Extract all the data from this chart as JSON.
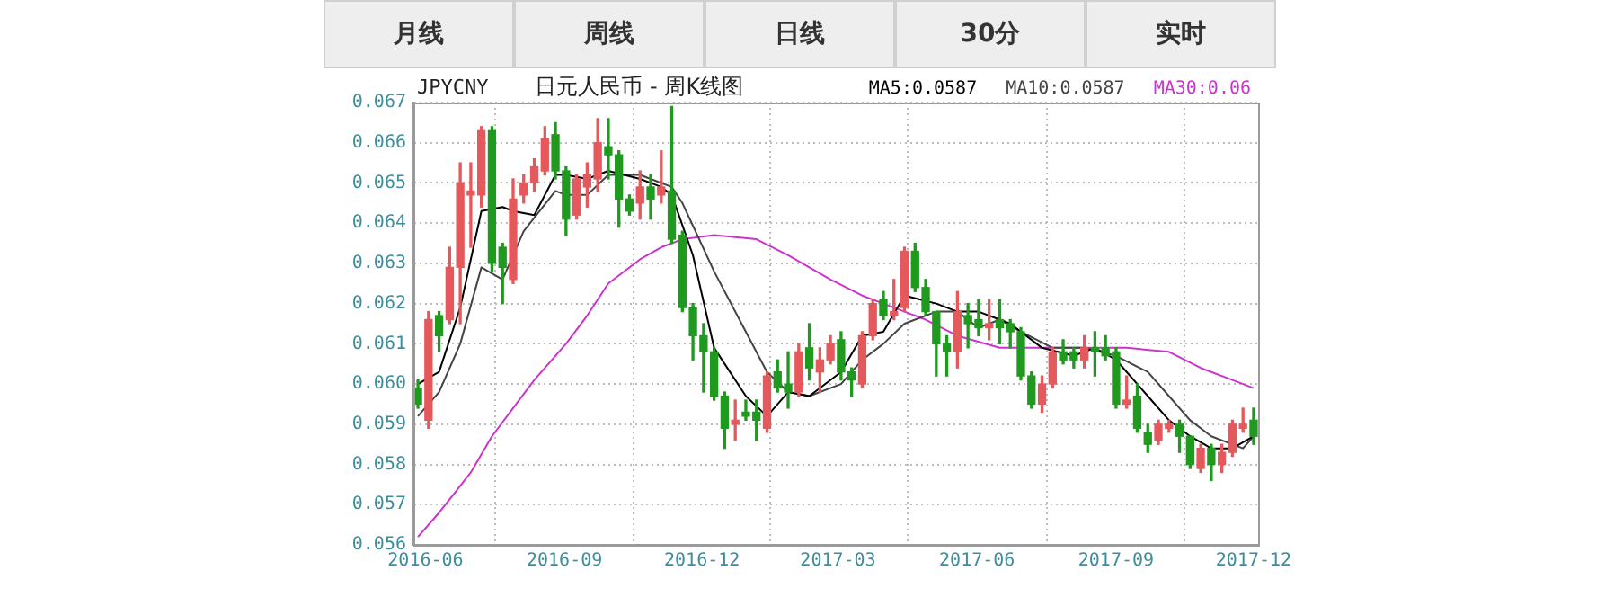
{
  "chart_data": {
    "type": "candlestick",
    "title": "JPYCNY",
    "subtitle": "日元人民币 - 周K线图",
    "x": [
      "2016-05-27",
      "2016-06-03",
      "2016-06-10",
      "2016-06-17",
      "2016-06-24",
      "2016-07-01",
      "2016-07-08",
      "2016-07-15",
      "2016-07-22",
      "2016-07-29",
      "2016-08-05",
      "2016-08-12",
      "2016-08-19",
      "2016-08-26",
      "2016-09-02",
      "2016-09-09",
      "2016-09-16",
      "2016-09-23",
      "2016-09-30",
      "2016-10-07",
      "2016-10-14",
      "2016-10-21",
      "2016-10-28",
      "2016-11-04",
      "2016-11-11",
      "2016-11-18",
      "2016-11-25",
      "2016-12-02",
      "2016-12-09",
      "2016-12-16",
      "2016-12-23",
      "2016-12-30",
      "2017-01-06",
      "2017-01-13",
      "2017-01-20",
      "2017-01-27",
      "2017-02-03",
      "2017-02-10",
      "2017-02-17",
      "2017-02-24",
      "2017-03-03",
      "2017-03-10",
      "2017-03-17",
      "2017-03-24",
      "2017-03-31",
      "2017-04-07",
      "2017-04-14",
      "2017-04-21",
      "2017-04-28",
      "2017-05-05",
      "2017-05-12",
      "2017-05-19",
      "2017-05-26",
      "2017-06-02",
      "2017-06-09",
      "2017-06-16",
      "2017-06-23",
      "2017-06-30",
      "2017-07-07",
      "2017-07-14",
      "2017-07-21",
      "2017-07-28",
      "2017-08-04",
      "2017-08-11",
      "2017-08-18",
      "2017-08-25",
      "2017-09-01",
      "2017-09-08",
      "2017-09-15",
      "2017-09-22",
      "2017-09-29",
      "2017-10-06",
      "2017-10-13",
      "2017-10-20",
      "2017-10-27",
      "2017-11-03",
      "2017-11-10",
      "2017-11-17",
      "2017-11-24",
      "2017-12-01"
    ],
    "ohlc": [
      [
        0.0599,
        0.0601,
        0.0594,
        0.0595
      ],
      [
        0.0591,
        0.0618,
        0.0589,
        0.0616
      ],
      [
        0.0617,
        0.0618,
        0.0608,
        0.0612
      ],
      [
        0.0616,
        0.0634,
        0.0615,
        0.0629
      ],
      [
        0.0629,
        0.0655,
        0.0615,
        0.065
      ],
      [
        0.0647,
        0.0655,
        0.0634,
        0.0648
      ],
      [
        0.0647,
        0.0664,
        0.0644,
        0.0663
      ],
      [
        0.0663,
        0.0664,
        0.0628,
        0.063
      ],
      [
        0.0634,
        0.0635,
        0.062,
        0.0629
      ],
      [
        0.0626,
        0.0651,
        0.0625,
        0.0646
      ],
      [
        0.0647,
        0.0652,
        0.0645,
        0.065
      ],
      [
        0.065,
        0.0656,
        0.0648,
        0.0654
      ],
      [
        0.0653,
        0.0664,
        0.0652,
        0.0661
      ],
      [
        0.0662,
        0.0665,
        0.0651,
        0.0653
      ],
      [
        0.0653,
        0.0654,
        0.0637,
        0.0641
      ],
      [
        0.0642,
        0.0652,
        0.0641,
        0.0651
      ],
      [
        0.0649,
        0.0655,
        0.0644,
        0.0652
      ],
      [
        0.0651,
        0.0666,
        0.0648,
        0.066
      ],
      [
        0.0659,
        0.0666,
        0.0651,
        0.0657
      ],
      [
        0.0657,
        0.0658,
        0.0639,
        0.0646
      ],
      [
        0.0646,
        0.0647,
        0.0642,
        0.0643
      ],
      [
        0.0645,
        0.0653,
        0.0641,
        0.0649
      ],
      [
        0.0649,
        0.0652,
        0.0641,
        0.0646
      ],
      [
        0.0647,
        0.0658,
        0.0645,
        0.0649
      ],
      [
        0.0648,
        0.0669,
        0.0635,
        0.0636
      ],
      [
        0.0637,
        0.0638,
        0.0618,
        0.0619
      ],
      [
        0.0619,
        0.062,
        0.0606,
        0.0612
      ],
      [
        0.0612,
        0.0615,
        0.0598,
        0.0608
      ],
      [
        0.0608,
        0.0609,
        0.0596,
        0.0597
      ],
      [
        0.0597,
        0.0598,
        0.0584,
        0.0589
      ],
      [
        0.059,
        0.0596,
        0.0586,
        0.0591
      ],
      [
        0.0593,
        0.0596,
        0.0591,
        0.0592
      ],
      [
        0.0593,
        0.0596,
        0.0586,
        0.0591
      ],
      [
        0.0589,
        0.0603,
        0.0588,
        0.0602
      ],
      [
        0.0603,
        0.0606,
        0.0598,
        0.0599
      ],
      [
        0.06,
        0.0608,
        0.0594,
        0.0598
      ],
      [
        0.0598,
        0.061,
        0.0597,
        0.0608
      ],
      [
        0.0609,
        0.0615,
        0.0601,
        0.0604
      ],
      [
        0.0603,
        0.0609,
        0.0598,
        0.0606
      ],
      [
        0.0606,
        0.0612,
        0.0605,
        0.061
      ],
      [
        0.0611,
        0.0613,
        0.0601,
        0.0603
      ],
      [
        0.0603,
        0.0604,
        0.0597,
        0.0601
      ],
      [
        0.06,
        0.0613,
        0.0599,
        0.0612
      ],
      [
        0.0612,
        0.0621,
        0.0611,
        0.062
      ],
      [
        0.0621,
        0.0623,
        0.0616,
        0.0617
      ],
      [
        0.0617,
        0.0626,
        0.0616,
        0.0618
      ],
      [
        0.0619,
        0.0634,
        0.0618,
        0.0633
      ],
      [
        0.0633,
        0.0635,
        0.0623,
        0.0624
      ],
      [
        0.0624,
        0.0626,
        0.0617,
        0.0618
      ],
      [
        0.0618,
        0.0618,
        0.0602,
        0.061
      ],
      [
        0.061,
        0.0612,
        0.0602,
        0.0608
      ],
      [
        0.0608,
        0.0623,
        0.0604,
        0.0618
      ],
      [
        0.0617,
        0.062,
        0.0609,
        0.0615
      ],
      [
        0.0616,
        0.0621,
        0.0612,
        0.0614
      ],
      [
        0.0614,
        0.0621,
        0.0611,
        0.0615
      ],
      [
        0.0616,
        0.0621,
        0.061,
        0.0614
      ],
      [
        0.0615,
        0.0616,
        0.0609,
        0.0613
      ],
      [
        0.0613,
        0.0614,
        0.0601,
        0.0602
      ],
      [
        0.0602,
        0.0603,
        0.0594,
        0.0595
      ],
      [
        0.0595,
        0.0602,
        0.0593,
        0.06
      ],
      [
        0.06,
        0.0609,
        0.0599,
        0.0608
      ],
      [
        0.0608,
        0.0611,
        0.0605,
        0.0606
      ],
      [
        0.0608,
        0.0609,
        0.0604,
        0.0606
      ],
      [
        0.0606,
        0.0612,
        0.0604,
        0.0609
      ],
      [
        0.0609,
        0.0613,
        0.0602,
        0.0608
      ],
      [
        0.0609,
        0.0612,
        0.0606,
        0.0607
      ],
      [
        0.0608,
        0.0609,
        0.0594,
        0.0595
      ],
      [
        0.0595,
        0.0602,
        0.0594,
        0.0596
      ],
      [
        0.0597,
        0.06,
        0.0588,
        0.0589
      ],
      [
        0.0588,
        0.059,
        0.0583,
        0.0585
      ],
      [
        0.0586,
        0.0591,
        0.0585,
        0.059
      ],
      [
        0.0589,
        0.0591,
        0.0588,
        0.059
      ],
      [
        0.059,
        0.0591,
        0.0583,
        0.0587
      ],
      [
        0.0587,
        0.0587,
        0.0579,
        0.058
      ],
      [
        0.0579,
        0.0585,
        0.0578,
        0.0584
      ],
      [
        0.0584,
        0.0585,
        0.0576,
        0.058
      ],
      [
        0.058,
        0.0585,
        0.0578,
        0.0583
      ],
      [
        0.0583,
        0.0591,
        0.0582,
        0.059
      ],
      [
        0.0589,
        0.0594,
        0.0588,
        0.059
      ],
      [
        0.0591,
        0.0594,
        0.0585,
        0.0587
      ]
    ],
    "colors": [
      "#1f9a1f",
      "#e5585c",
      "#1f9a1f",
      "#e5585c",
      "#e5585c",
      "#e5585c",
      "#e5585c",
      "#1f9a1f",
      "#1f9a1f",
      "#e5585c",
      "#e5585c",
      "#e5585c",
      "#e5585c",
      "#1f9a1f",
      "#1f9a1f",
      "#e5585c",
      "#e5585c",
      "#e5585c",
      "#1f9a1f",
      "#1f9a1f",
      "#1f9a1f",
      "#e5585c",
      "#1f9a1f",
      "#e5585c",
      "#1f9a1f",
      "#1f9a1f",
      "#1f9a1f",
      "#1f9a1f",
      "#1f9a1f",
      "#1f9a1f",
      "#e5585c",
      "#1f9a1f",
      "#1f9a1f",
      "#e5585c",
      "#1f9a1f",
      "#1f9a1f",
      "#e5585c",
      "#1f9a1f",
      "#e5585c",
      "#e5585c",
      "#1f9a1f",
      "#1f9a1f",
      "#e5585c",
      "#e5585c",
      "#1f9a1f",
      "#e5585c",
      "#e5585c",
      "#1f9a1f",
      "#1f9a1f",
      "#1f9a1f",
      "#1f9a1f",
      "#e5585c",
      "#1f9a1f",
      "#1f9a1f",
      "#e5585c",
      "#1f9a1f",
      "#1f9a1f",
      "#1f9a1f",
      "#1f9a1f",
      "#e5585c",
      "#e5585c",
      "#1f9a1f",
      "#1f9a1f",
      "#e5585c",
      "#1f9a1f",
      "#1f9a1f",
      "#1f9a1f",
      "#e5585c",
      "#1f9a1f",
      "#1f9a1f",
      "#e5585c",
      "#e5585c",
      "#1f9a1f",
      "#1f9a1f",
      "#e5585c",
      "#1f9a1f",
      "#e5585c",
      "#e5585c",
      "#e5585c",
      "#1f9a1f"
    ],
    "series": [
      {
        "name": "MA5:0.0587",
        "type": "line",
        "color": "#000000",
        "x": [
          "2016-05-27",
          "2016-06-10",
          "2016-06-24",
          "2016-07-08",
          "2016-07-22",
          "2016-07-29",
          "2016-08-12",
          "2016-08-26",
          "2016-09-02",
          "2016-09-16",
          "2016-09-30",
          "2016-10-21",
          "2016-11-04",
          "2016-11-11",
          "2016-11-25",
          "2016-12-09",
          "2016-12-30",
          "2017-01-13",
          "2017-01-27",
          "2017-02-10",
          "2017-03-03",
          "2017-03-17",
          "2017-03-31",
          "2017-04-14",
          "2017-05-05",
          "2017-05-19",
          "2017-06-02",
          "2017-06-16",
          "2017-06-23",
          "2017-07-14",
          "2017-08-04",
          "2017-08-18",
          "2017-09-01",
          "2017-09-22",
          "2017-10-06",
          "2017-10-20",
          "2017-11-03",
          "2017-11-17",
          "2017-12-01"
        ],
        "values": [
          0.06,
          0.0603,
          0.0619,
          0.0643,
          0.0644,
          0.0643,
          0.0642,
          0.0652,
          0.0652,
          0.0651,
          0.0653,
          0.0651,
          0.0649,
          0.0647,
          0.0632,
          0.0609,
          0.0597,
          0.0592,
          0.0598,
          0.0597,
          0.0603,
          0.0612,
          0.0613,
          0.0622,
          0.062,
          0.0618,
          0.0618,
          0.0616,
          0.0615,
          0.0609,
          0.0607,
          0.0609,
          0.0606,
          0.0597,
          0.0591,
          0.0587,
          0.0584,
          0.0584,
          0.0587
        ]
      },
      {
        "name": "MA10:0.0587",
        "type": "line",
        "color": "#444444",
        "x": [
          "2016-05-27",
          "2016-06-10",
          "2016-06-24",
          "2016-07-08",
          "2016-07-22",
          "2016-08-05",
          "2016-08-26",
          "2016-09-02",
          "2016-09-16",
          "2016-09-30",
          "2016-10-21",
          "2016-11-04",
          "2016-11-11",
          "2016-11-18",
          "2016-12-09",
          "2016-12-30",
          "2017-01-13",
          "2017-01-27",
          "2017-02-10",
          "2017-03-03",
          "2017-03-17",
          "2017-03-31",
          "2017-04-14",
          "2017-05-05",
          "2017-05-19",
          "2017-06-02",
          "2017-06-16",
          "2017-06-30",
          "2017-07-21",
          "2017-08-11",
          "2017-09-01",
          "2017-09-22",
          "2017-10-06",
          "2017-10-20",
          "2017-11-03",
          "2017-11-24",
          "2017-12-01"
        ],
        "values": [
          0.0592,
          0.0598,
          0.061,
          0.0629,
          0.0626,
          0.0638,
          0.0648,
          0.0647,
          0.0647,
          0.0652,
          0.0652,
          0.065,
          0.0649,
          0.0645,
          0.0628,
          0.0613,
          0.0603,
          0.0598,
          0.0597,
          0.06,
          0.0606,
          0.061,
          0.0615,
          0.0618,
          0.0618,
          0.0614,
          0.0616,
          0.0613,
          0.0609,
          0.0609,
          0.0607,
          0.0603,
          0.0597,
          0.0591,
          0.0587,
          0.0584,
          0.0587
        ]
      },
      {
        "name": "MA30:0.06",
        "type": "line",
        "color": "#cc33cc",
        "x": [
          "2016-05-27",
          "2016-06-10",
          "2016-07-01",
          "2016-07-15",
          "2016-07-29",
          "2016-08-12",
          "2016-09-02",
          "2016-09-16",
          "2016-09-30",
          "2016-10-21",
          "2016-11-04",
          "2016-11-18",
          "2016-12-09",
          "2017-01-06",
          "2017-01-27",
          "2017-02-24",
          "2017-03-17",
          "2017-03-31",
          "2017-04-28",
          "2017-05-19",
          "2017-06-16",
          "2017-07-14",
          "2017-08-11",
          "2017-09-08",
          "2017-10-06",
          "2017-10-27",
          "2017-11-17",
          "2017-12-01"
        ],
        "values": [
          0.0562,
          0.0568,
          0.0578,
          0.0587,
          0.0594,
          0.0601,
          0.061,
          0.0617,
          0.0625,
          0.0631,
          0.0634,
          0.0636,
          0.0637,
          0.0636,
          0.0632,
          0.0626,
          0.0622,
          0.062,
          0.0616,
          0.0612,
          0.0609,
          0.0609,
          0.0609,
          0.0609,
          0.0608,
          0.0604,
          0.0601,
          0.0599
        ]
      }
    ],
    "xlim": [
      "2016-05-24",
      "2017-12-04"
    ],
    "xticks": [
      "2016-06",
      "2016-09",
      "2016-12",
      "2017-03",
      "2017-06",
      "2017-09",
      "2017-12"
    ],
    "ylim": [
      0.056,
      0.067
    ],
    "yticks": [
      0.056,
      0.057,
      0.058,
      0.059,
      {
        "value": 0.06,
        "label": "0.060"
      },
      0.061,
      0.062,
      0.063,
      0.064,
      0.065,
      0.066,
      0.067
    ],
    "grid": true,
    "legend": "top",
    "marker": "none",
    "line_style": "solid",
    "annotations": [
      "月线",
      "周线",
      "日线",
      "30分",
      "实时"
    ]
  }
}
